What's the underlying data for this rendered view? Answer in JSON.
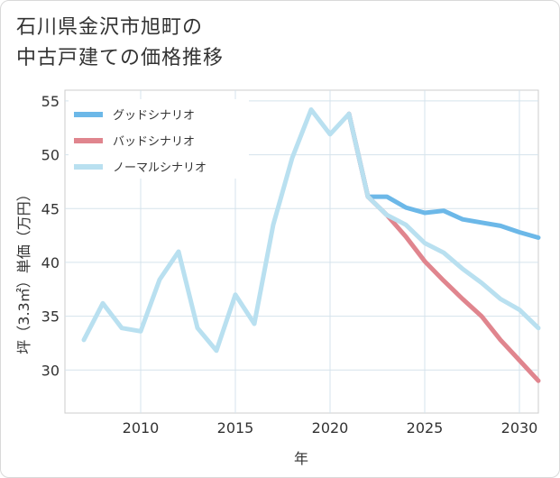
{
  "chart_data": {
    "type": "line",
    "title_lines": [
      "石川県金沢市旭町の",
      "中古戸建ての価格推移"
    ],
    "xlabel": "年",
    "ylabel": "坪（3.3㎡）単価（万円）",
    "xlim": [
      2006,
      2031
    ],
    "ylim": [
      26,
      56
    ],
    "x_ticks": [
      2010,
      2015,
      2020,
      2025,
      2030
    ],
    "y_ticks": [
      30,
      35,
      40,
      45,
      50,
      55
    ],
    "grid": true,
    "legend_position": "top-left",
    "series": [
      {
        "name": "グッドシナリオ",
        "color": "#6cb8e8",
        "x": [
          2021,
          2022,
          2023,
          2024,
          2025,
          2026,
          2027,
          2028,
          2029,
          2030,
          2031
        ],
        "y": [
          53.8,
          46.1,
          46.1,
          45.1,
          44.6,
          44.8,
          44.0,
          43.7,
          43.4,
          42.8,
          42.3
        ]
      },
      {
        "name": "バッドシナリオ",
        "color": "#e0858e",
        "x": [
          2021,
          2022,
          2023,
          2024,
          2025,
          2026,
          2027,
          2028,
          2029,
          2030,
          2031
        ],
        "y": [
          53.8,
          46.1,
          44.4,
          42.4,
          40.1,
          38.3,
          36.6,
          35.0,
          32.8,
          30.9,
          29.0
        ]
      },
      {
        "name": "ノーマルシナリオ",
        "color": "#b9e0f0",
        "x": [
          2007,
          2008,
          2009,
          2010,
          2011,
          2012,
          2013,
          2014,
          2015,
          2016,
          2017,
          2018,
          2019,
          2020,
          2021,
          2022,
          2023,
          2024,
          2025,
          2026,
          2027,
          2028,
          2029,
          2030,
          2031
        ],
        "y": [
          32.8,
          36.2,
          33.9,
          33.6,
          38.4,
          41.0,
          33.9,
          31.8,
          37.0,
          34.3,
          43.5,
          49.7,
          54.2,
          51.9,
          53.8,
          46.1,
          44.4,
          43.5,
          41.8,
          40.9,
          39.4,
          38.1,
          36.6,
          35.6,
          33.9
        ]
      }
    ]
  }
}
